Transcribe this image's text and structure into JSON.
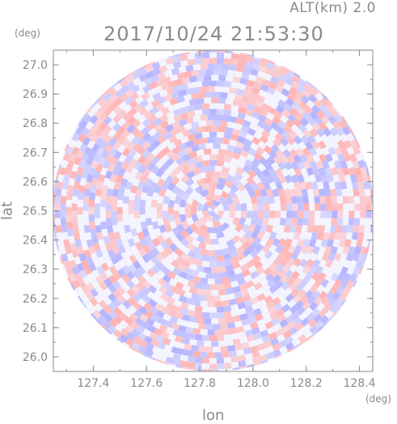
{
  "header": {
    "altitude_label": "ALT(km) 2.0",
    "datetime": "2017/10/24 21:53:30"
  },
  "chart_data": {
    "type": "heatmap",
    "title": "2017/10/24 21:53:30",
    "xlabel": "lon",
    "ylabel": "lat",
    "x_unit": "(deg)",
    "y_unit": "(deg)",
    "xlim": [
      127.25,
      128.45
    ],
    "ylim": [
      25.95,
      27.05
    ],
    "x_ticks": [
      "127.4",
      "127.6",
      "127.8",
      "128.0",
      "128.2",
      "128.4"
    ],
    "x_tick_values": [
      127.4,
      127.6,
      127.8,
      128.0,
      128.2,
      128.4
    ],
    "y_ticks": [
      "26.0",
      "26.1",
      "26.2",
      "26.3",
      "26.4",
      "26.5",
      "26.6",
      "26.7",
      "26.8",
      "26.9",
      "27.0"
    ],
    "y_tick_values": [
      26.0,
      26.1,
      26.2,
      26.3,
      26.4,
      26.5,
      26.6,
      26.7,
      26.8,
      26.9,
      27.0
    ],
    "radar_center": {
      "lon": 127.85,
      "lat": 26.5
    },
    "radar_radius_deg_lat": 0.55,
    "colors": {
      "positive": "#ffb3b3",
      "negative": "#b3b3ff",
      "neutral": "#f4f4ff",
      "axis": "#8a8a8a"
    },
    "grid": false,
    "legend": "none"
  }
}
